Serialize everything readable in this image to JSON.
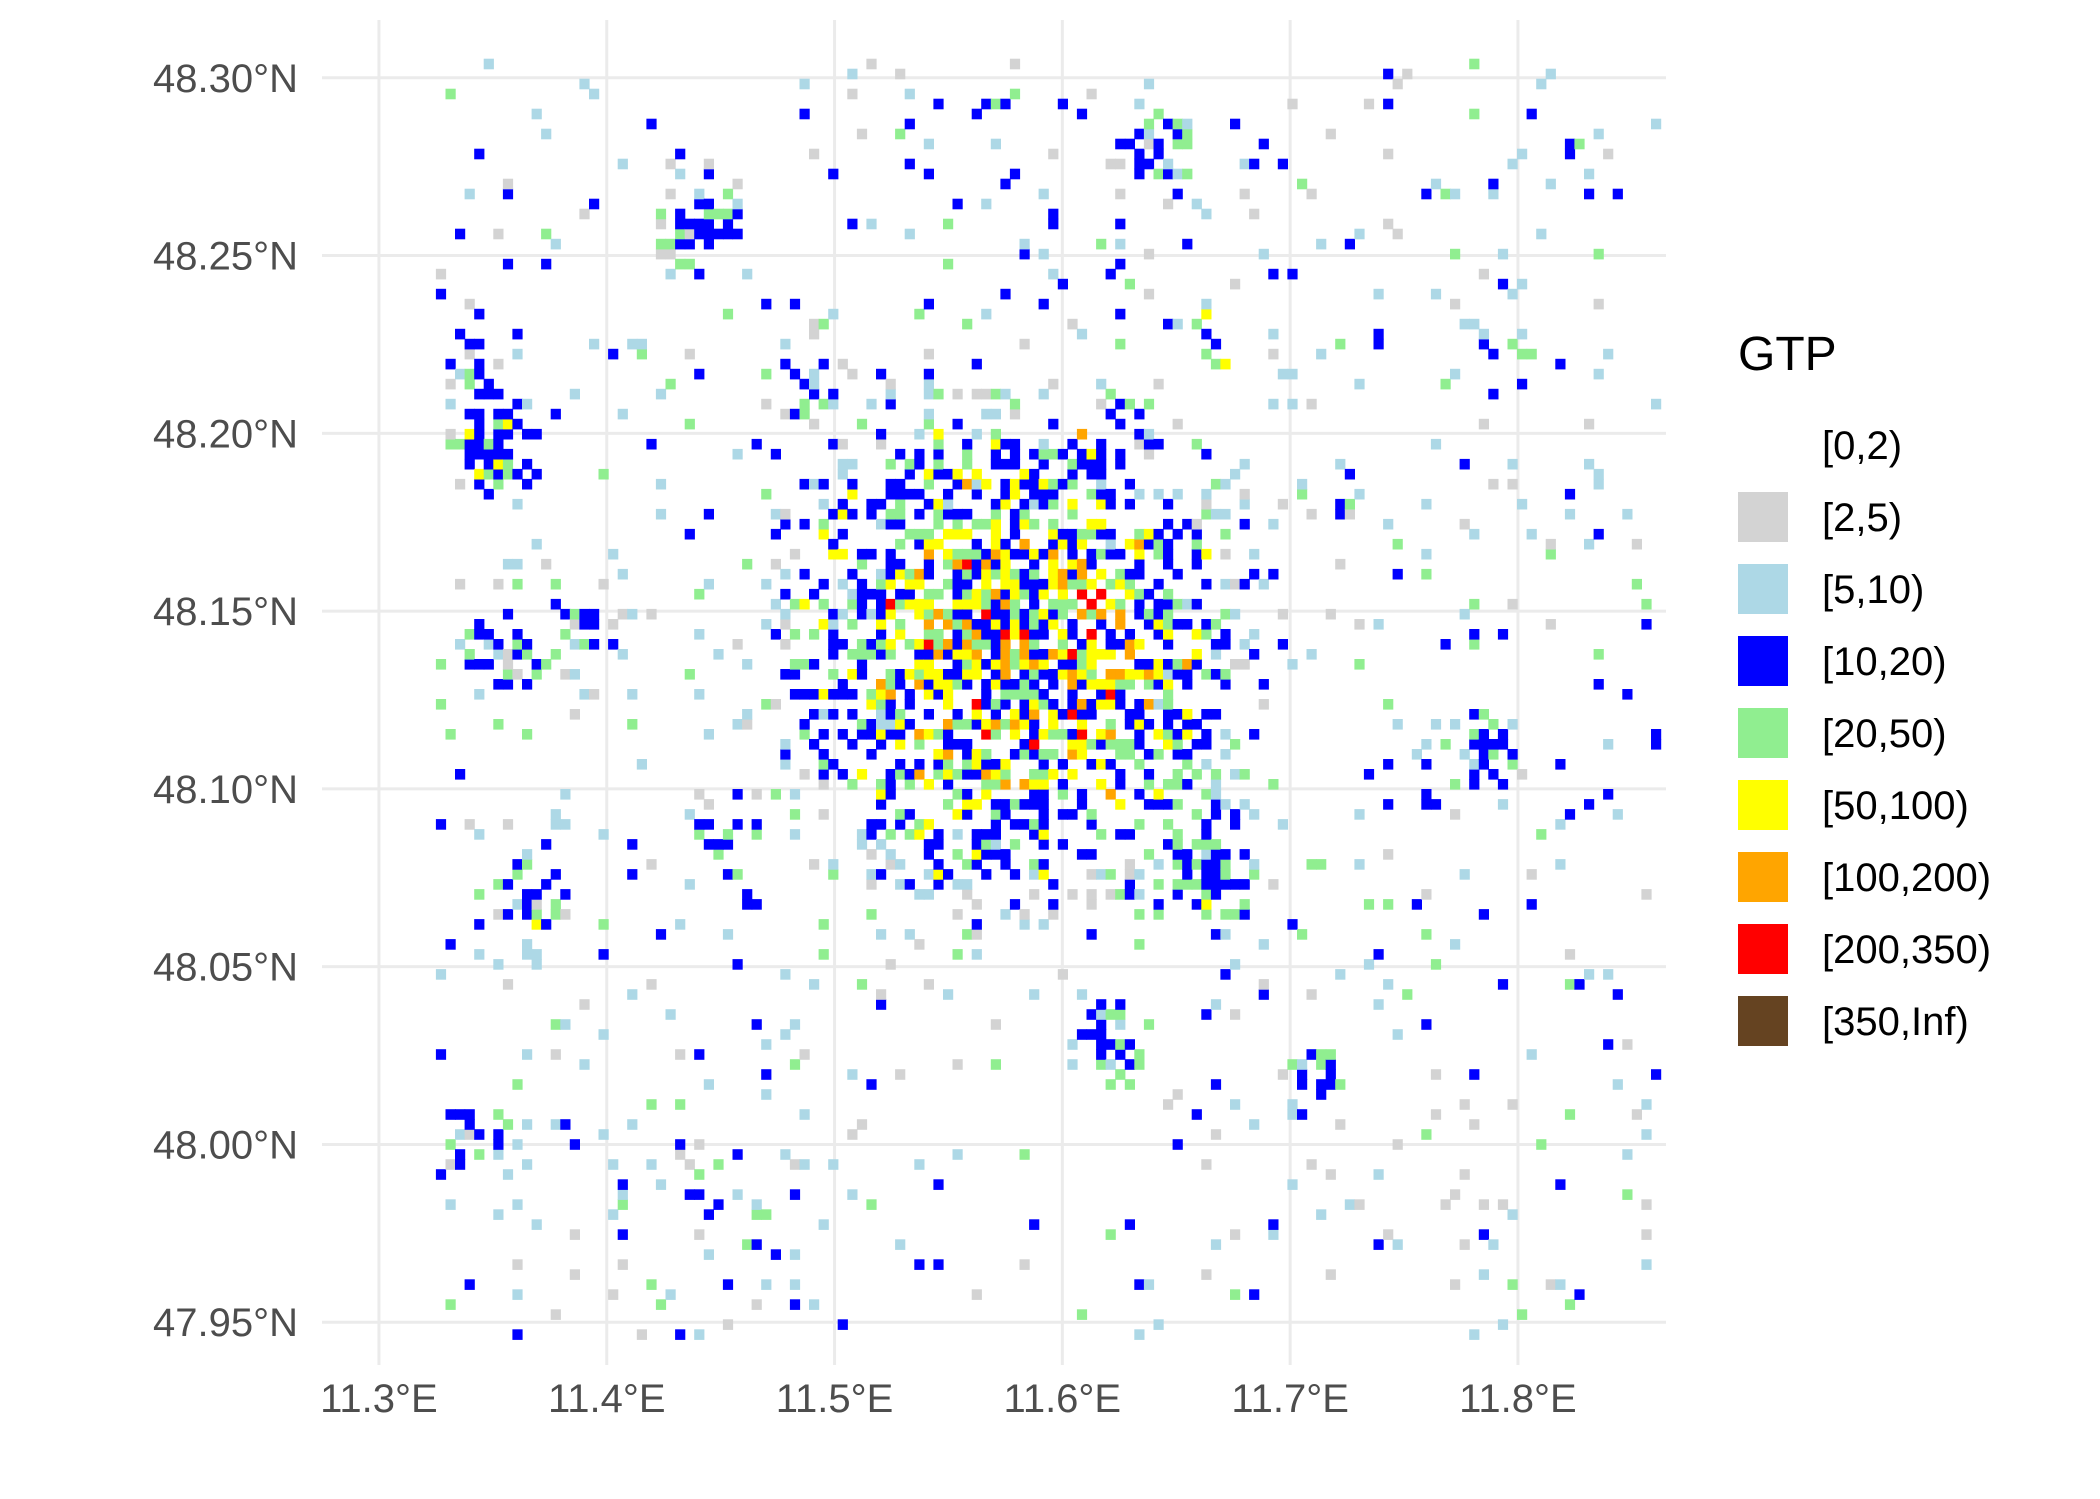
{
  "map": {
    "projection": "lon-lat graticule",
    "lat_ticks": [
      {
        "value": 48.3,
        "label": "48.30°N"
      },
      {
        "value": 48.25,
        "label": "48.25°N"
      },
      {
        "value": 48.2,
        "label": "48.20°N"
      },
      {
        "value": 48.15,
        "label": "48.15°N"
      },
      {
        "value": 48.1,
        "label": "48.10°N"
      },
      {
        "value": 48.05,
        "label": "48.05°N"
      },
      {
        "value": 48.0,
        "label": "48.00°N"
      },
      {
        "value": 47.95,
        "label": "47.95°N"
      }
    ],
    "lon_ticks": [
      {
        "value": 11.3,
        "label": "11.3°E"
      },
      {
        "value": 11.4,
        "label": "11.4°E"
      },
      {
        "value": 11.5,
        "label": "11.5°E"
      },
      {
        "value": 11.6,
        "label": "11.6°E"
      },
      {
        "value": 11.7,
        "label": "11.7°E"
      },
      {
        "value": 11.8,
        "label": "11.8°E"
      }
    ],
    "lon_range": [
      11.275,
      11.865
    ],
    "lat_range": [
      47.945,
      48.305
    ],
    "data_extent": {
      "lon": [
        11.325,
        11.86
      ],
      "lat": [
        47.948,
        48.307
      ]
    },
    "city_center": {
      "lon": 11.575,
      "lat": 48.14
    },
    "grid_color": "#ebebeb"
  },
  "legend": {
    "title": "GTP",
    "position": "right",
    "items": [
      {
        "label": "[0,2)",
        "color": "#ffffff"
      },
      {
        "label": "[2,5)",
        "color": "#d3d3d3"
      },
      {
        "label": "[5,10)",
        "color": "#add8e6"
      },
      {
        "label": "[10,20)",
        "color": "#0000ff"
      },
      {
        "label": "[20,50)",
        "color": "#90ee90"
      },
      {
        "label": "[50,100)",
        "color": "#ffff00"
      },
      {
        "label": "[100,200)",
        "color": "#ffa500"
      },
      {
        "label": "[200,350)",
        "color": "#ff0000"
      },
      {
        "label": "[350,Inf)",
        "color": "#654321"
      }
    ]
  }
}
